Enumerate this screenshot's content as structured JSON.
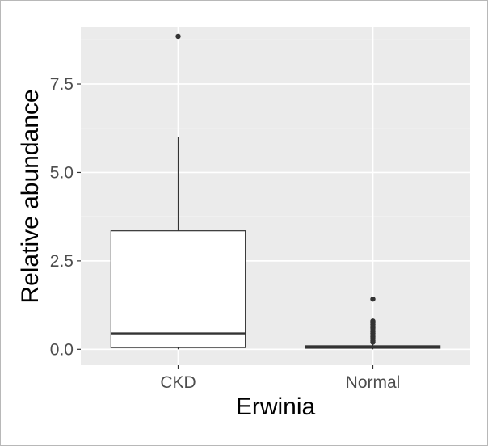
{
  "chart_data": {
    "type": "box",
    "title": "",
    "xlabel": "Erwinia",
    "ylabel": "Relative abundance",
    "ylim": [
      -0.45,
      9.1
    ],
    "yticks": [
      0.0,
      2.5,
      5.0,
      7.5
    ],
    "ytick_labels": [
      "0.0",
      "2.5",
      "5.0",
      "7.5"
    ],
    "categories": [
      "CKD",
      "Normal"
    ],
    "grid": true,
    "legend": "none",
    "colors": {
      "panel_bg": "#ebebeb",
      "grid_major": "#ffffff",
      "box_fill": "#ffffff",
      "box_line": "#333333",
      "outlier": "#333333",
      "tick_text": "#4d4d4d"
    },
    "boxes": [
      {
        "category": "CKD",
        "lower_whisker": 0.0,
        "q1": 0.05,
        "median": 0.45,
        "q3": 3.35,
        "upper_whisker": 6.0,
        "outliers": [
          8.85
        ]
      },
      {
        "category": "Normal",
        "lower_whisker": 0.0,
        "q1": 0.03,
        "median": 0.06,
        "q3": 0.1,
        "upper_whisker": 0.15,
        "outliers": [
          1.42,
          0.8,
          0.75,
          0.7,
          0.65,
          0.6,
          0.55,
          0.5,
          0.45,
          0.4,
          0.35,
          0.3,
          0.25,
          0.2
        ]
      }
    ]
  }
}
